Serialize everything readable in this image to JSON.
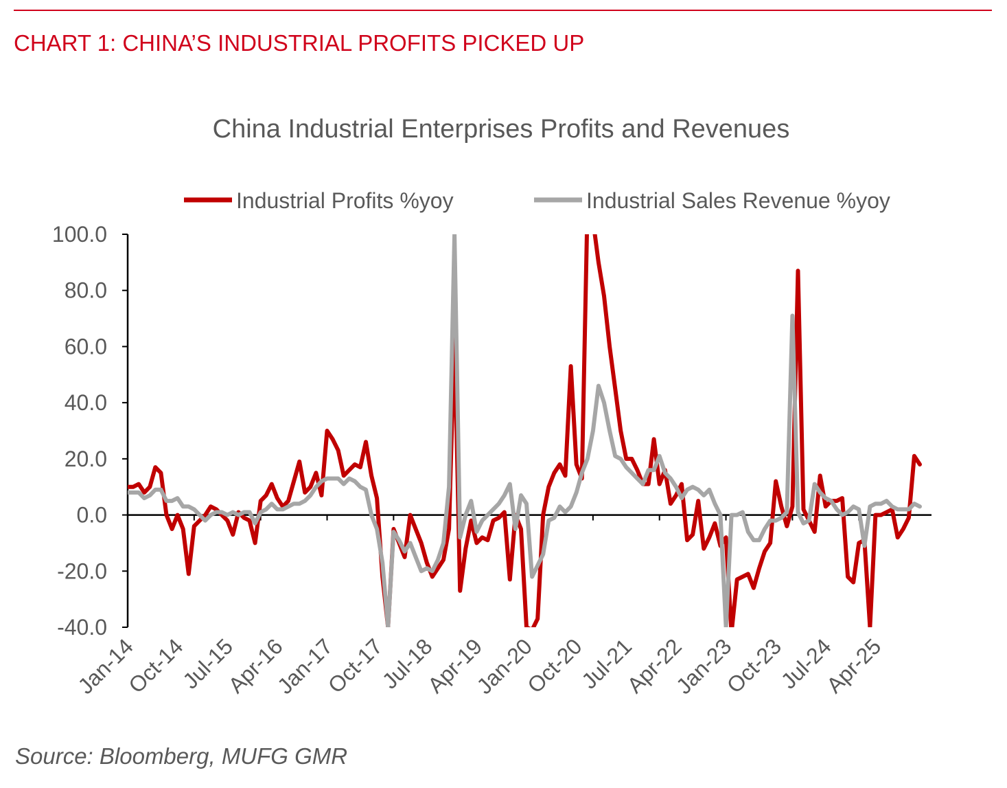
{
  "heading": "CHART 1: CHINA’S INDUSTRIAL PROFITS PICKED UP",
  "source": "Source: Bloomberg, MUFG GMR",
  "colors": {
    "accent": "#d0021b",
    "profits": "#c00000",
    "revenue": "#a6a6a6",
    "text": "#595959"
  },
  "chart_data": {
    "type": "line",
    "title": "China Industrial Enterprises Profits and Revenues",
    "legend_position": "top",
    "ylim": [
      -40,
      100
    ],
    "y_ticks": [
      100,
      80,
      60,
      40,
      20,
      0,
      -20,
      -40
    ],
    "y_tick_labels": [
      "100.0",
      "80.0",
      "60.0",
      "40.0",
      "20.0",
      "0.0",
      "-20.0",
      "-40.0"
    ],
    "x_tick_labels": [
      "Jan-14",
      "Oct-14",
      "Jul-15",
      "Apr-16",
      "Jan-17",
      "Oct-17",
      "Jul-18",
      "Apr-19",
      "Jan-20",
      "Oct-20",
      "Jul-21",
      "Apr-22",
      "Jan-23",
      "Oct-23",
      "Jul-24",
      "Apr-25"
    ],
    "x_start": "Jan-14",
    "x_end": "Aug-25",
    "series": [
      {
        "name": "Industrial Profits %yoy",
        "values": [
          10,
          10,
          11,
          8,
          10,
          17,
          15,
          0,
          -5,
          0,
          -5,
          -21,
          -4,
          -2,
          0,
          3,
          2,
          0,
          -2,
          -7,
          1,
          -1,
          -2,
          -10,
          5,
          7,
          11,
          6,
          3,
          5,
          12,
          19,
          8,
          10,
          15,
          7,
          30,
          27,
          23,
          14,
          16,
          18,
          17,
          26,
          14,
          6,
          -22,
          -40,
          -5,
          -10,
          -15,
          0,
          -5,
          -10,
          -17,
          -22,
          -19,
          -16,
          -5,
          65,
          -27,
          -12,
          -2,
          -10,
          -8,
          -9,
          -2,
          -1,
          1,
          -23,
          0,
          -5,
          -40,
          -41,
          -37,
          0,
          10,
          15,
          18,
          14,
          53,
          18,
          13,
          110,
          105,
          90,
          78,
          60,
          45,
          30,
          20,
          20,
          16,
          11,
          11,
          27,
          11,
          16,
          4,
          7,
          11,
          -9,
          -7,
          5,
          -12,
          -8,
          -3,
          -11,
          -8,
          -42,
          -23,
          -22,
          -21,
          -26,
          -19,
          -13,
          -10,
          12,
          3,
          -4,
          3,
          87,
          2,
          -2,
          -6,
          14,
          3,
          5,
          5,
          6,
          -22,
          -24,
          -10,
          -9,
          -40,
          0,
          0,
          1,
          2,
          -8,
          -5,
          -1,
          21,
          18
        ]
      },
      {
        "name": "Industrial Sales Revenue %yoy",
        "values": [
          8,
          8,
          8,
          6,
          7,
          9,
          9,
          5,
          5,
          6,
          3,
          3,
          2,
          0,
          -2,
          0,
          1,
          1,
          0,
          1,
          0,
          1,
          1,
          -3,
          1,
          2,
          4,
          2,
          2,
          3,
          4,
          4,
          5,
          7,
          10,
          12,
          13,
          13,
          13,
          11,
          13,
          12,
          10,
          9,
          0,
          -5,
          -17,
          -40,
          -6,
          -9,
          -13,
          -10,
          -15,
          -20,
          -19,
          -20,
          -16,
          -10,
          10,
          100,
          -8,
          0,
          5,
          -6,
          -2,
          0,
          2,
          4,
          7,
          11,
          -5,
          7,
          4,
          -22,
          -18,
          -14,
          -2,
          -1,
          3,
          1,
          3,
          8,
          15,
          20,
          30,
          46,
          40,
          30,
          21,
          20,
          17,
          15,
          13,
          11,
          16,
          16,
          21,
          15,
          13,
          10,
          6,
          9,
          10,
          9,
          7,
          9,
          4,
          0,
          -40,
          0,
          0,
          1,
          -6,
          -9,
          -9,
          -5,
          -2,
          -2,
          -1,
          1,
          71,
          1,
          -3,
          -2,
          11,
          8,
          6,
          5,
          2,
          0,
          1,
          3,
          2,
          -11,
          3,
          4,
          4,
          5,
          3,
          2,
          2,
          2,
          4,
          3
        ]
      }
    ]
  }
}
